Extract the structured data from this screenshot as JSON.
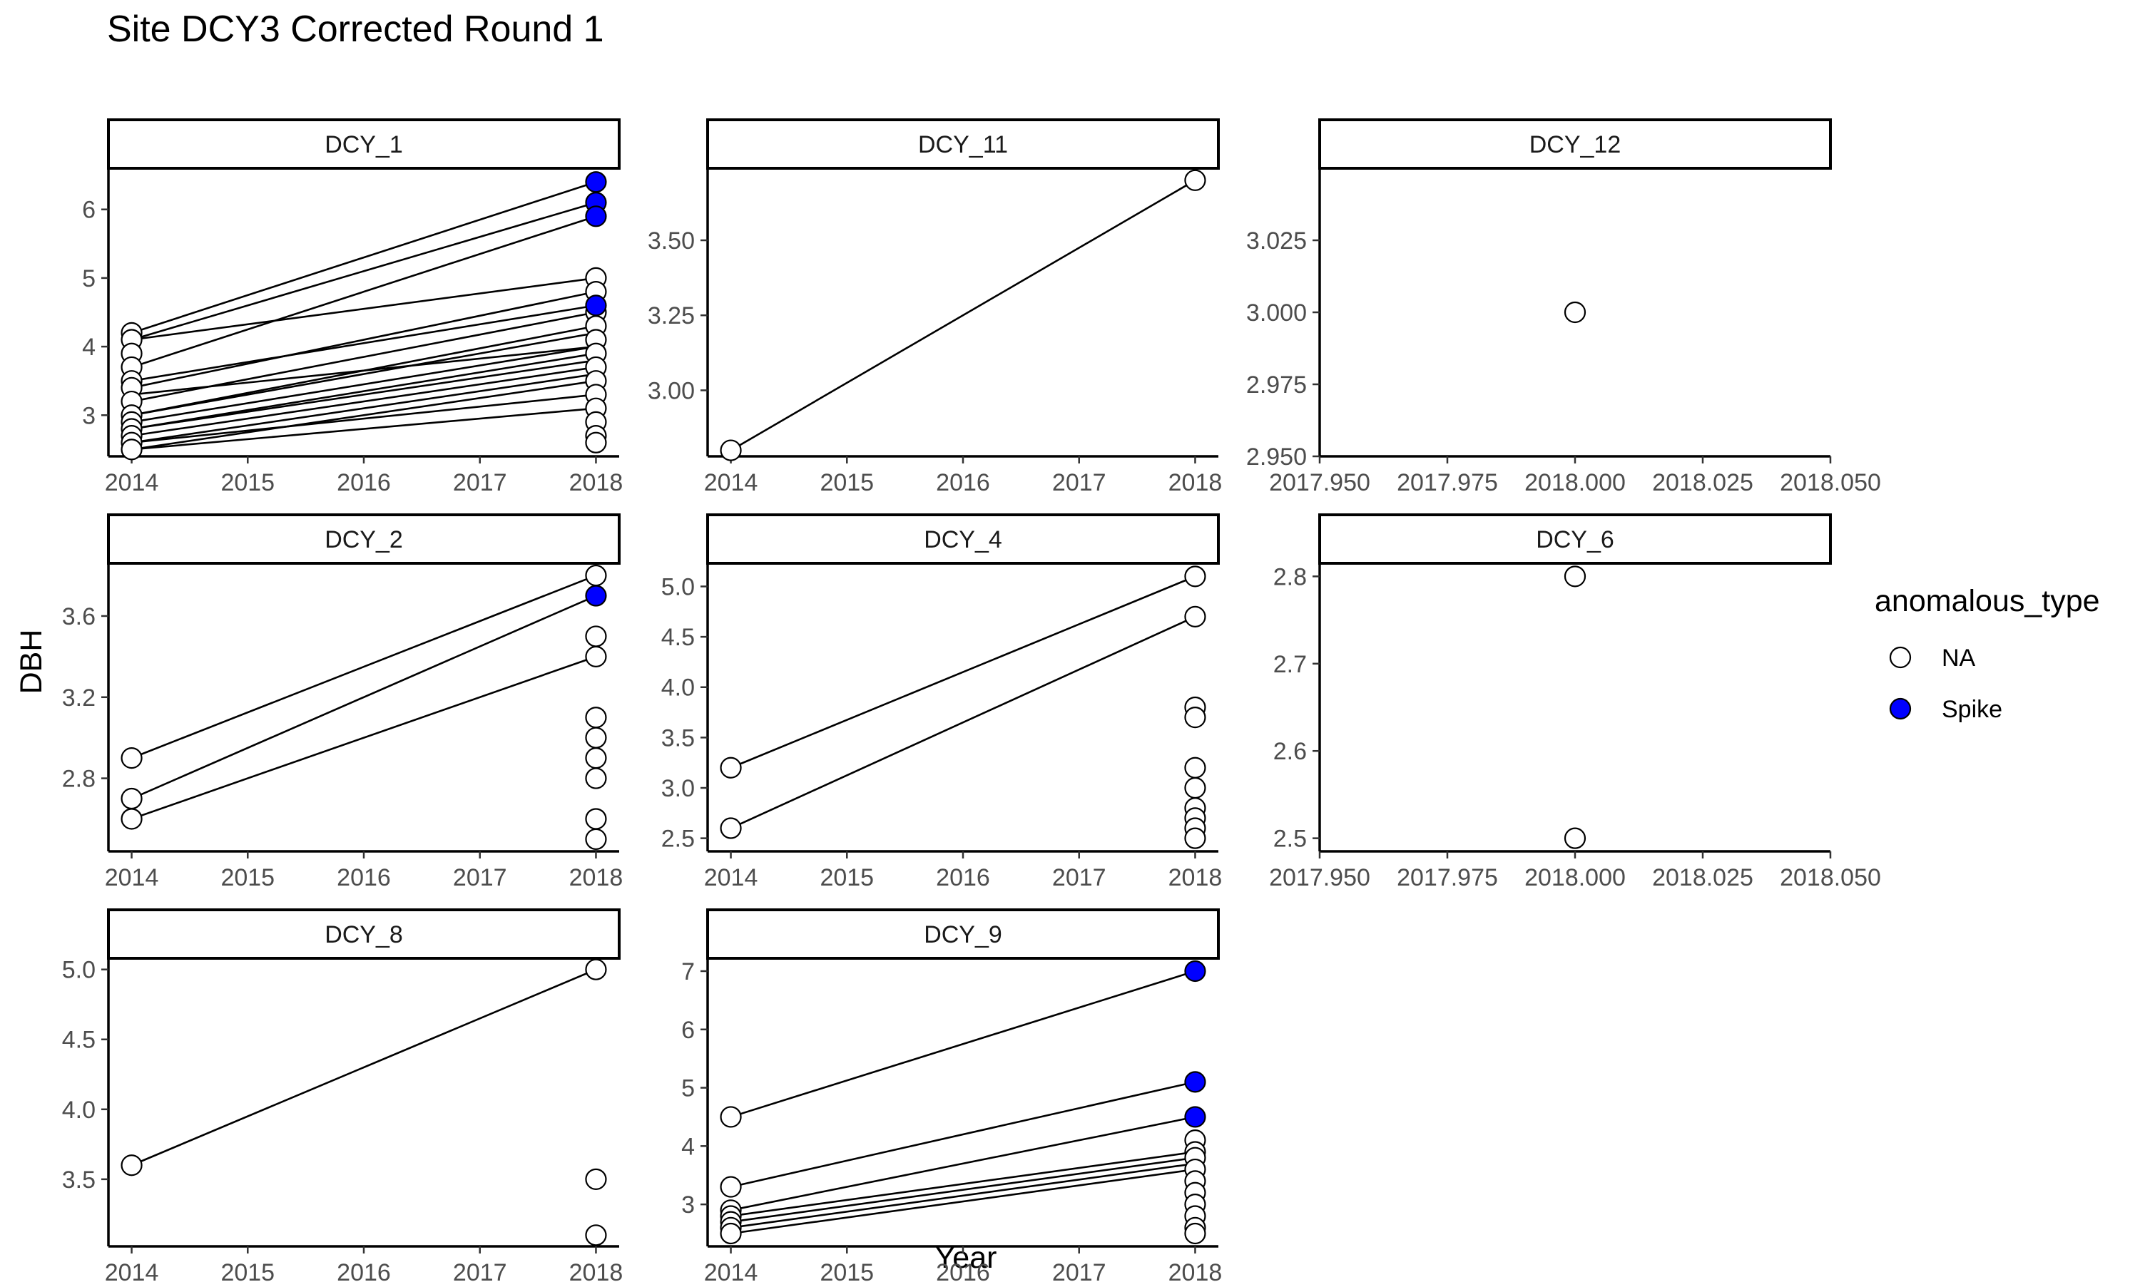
{
  "title": "Site DCY3 Corrected Round 1",
  "xlabel": "Year",
  "ylabel": "DBH",
  "legend": {
    "title": "anomalous_type",
    "items": [
      {
        "label": "NA",
        "fill": "#ffffff"
      },
      {
        "label": "Spike",
        "fill": "#0000ff"
      }
    ]
  },
  "colors": {
    "na_fill": "#ffffff",
    "spike_fill": "#0000ff",
    "stroke": "#000000"
  },
  "chart_data": [
    {
      "type": "scatter",
      "panel": "DCY_1",
      "xlim": [
        2013.8,
        2018.2
      ],
      "ylim": [
        2.4,
        6.6
      ],
      "xticks": [
        "2014",
        "2015",
        "2016",
        "2017",
        "2018"
      ],
      "yticks": [
        "3",
        "4",
        "5",
        "6"
      ],
      "segments": [
        [
          4.2,
          6.4
        ],
        [
          4.1,
          6.1
        ],
        [
          3.7,
          5.9
        ],
        [
          4.1,
          5.0
        ],
        [
          3.4,
          4.8
        ],
        [
          3.5,
          4.6
        ],
        [
          3.2,
          4.5
        ],
        [
          3.0,
          4.3
        ],
        [
          3.0,
          4.2
        ],
        [
          2.9,
          4.0
        ],
        [
          2.8,
          3.9
        ],
        [
          3.3,
          4.0
        ],
        [
          2.8,
          3.8
        ],
        [
          2.7,
          3.7
        ],
        [
          2.6,
          3.6
        ],
        [
          2.5,
          3.5
        ],
        [
          2.6,
          3.3
        ],
        [
          2.5,
          3.1
        ]
      ],
      "points": [
        {
          "x": 2014,
          "y": 4.2,
          "type": "NA"
        },
        {
          "x": 2014,
          "y": 4.1,
          "type": "NA"
        },
        {
          "x": 2014,
          "y": 3.9,
          "type": "NA"
        },
        {
          "x": 2014,
          "y": 3.7,
          "type": "NA"
        },
        {
          "x": 2014,
          "y": 3.5,
          "type": "NA"
        },
        {
          "x": 2014,
          "y": 3.4,
          "type": "NA"
        },
        {
          "x": 2014,
          "y": 3.2,
          "type": "NA"
        },
        {
          "x": 2014,
          "y": 3.0,
          "type": "NA"
        },
        {
          "x": 2014,
          "y": 2.9,
          "type": "NA"
        },
        {
          "x": 2014,
          "y": 2.8,
          "type": "NA"
        },
        {
          "x": 2014,
          "y": 2.7,
          "type": "NA"
        },
        {
          "x": 2014,
          "y": 2.6,
          "type": "NA"
        },
        {
          "x": 2014,
          "y": 2.5,
          "type": "NA"
        },
        {
          "x": 2018,
          "y": 5.0,
          "type": "NA"
        },
        {
          "x": 2018,
          "y": 4.8,
          "type": "NA"
        },
        {
          "x": 2018,
          "y": 4.5,
          "type": "NA"
        },
        {
          "x": 2018,
          "y": 4.3,
          "type": "NA"
        },
        {
          "x": 2018,
          "y": 4.1,
          "type": "NA"
        },
        {
          "x": 2018,
          "y": 3.9,
          "type": "NA"
        },
        {
          "x": 2018,
          "y": 3.7,
          "type": "NA"
        },
        {
          "x": 2018,
          "y": 3.5,
          "type": "NA"
        },
        {
          "x": 2018,
          "y": 3.3,
          "type": "NA"
        },
        {
          "x": 2018,
          "y": 3.1,
          "type": "NA"
        },
        {
          "x": 2018,
          "y": 2.9,
          "type": "NA"
        },
        {
          "x": 2018,
          "y": 2.7,
          "type": "NA"
        },
        {
          "x": 2018,
          "y": 2.6,
          "type": "NA"
        },
        {
          "x": 2018,
          "y": 6.4,
          "type": "Spike"
        },
        {
          "x": 2018,
          "y": 6.1,
          "type": "Spike"
        },
        {
          "x": 2018,
          "y": 5.9,
          "type": "Spike"
        },
        {
          "x": 2018,
          "y": 4.6,
          "type": "Spike"
        }
      ]
    },
    {
      "type": "scatter",
      "panel": "DCY_11",
      "xlim": [
        2013.8,
        2018.2
      ],
      "ylim": [
        2.78,
        3.74
      ],
      "xticks": [
        "2014",
        "2015",
        "2016",
        "2017",
        "2018"
      ],
      "yticks": [
        "3.00",
        "3.25",
        "3.50"
      ],
      "segments": [
        [
          2.8,
          3.7
        ]
      ],
      "points": [
        {
          "x": 2014,
          "y": 2.8,
          "type": "NA"
        },
        {
          "x": 2018,
          "y": 3.7,
          "type": "NA"
        }
      ]
    },
    {
      "type": "scatter",
      "panel": "DCY_12",
      "xlim": [
        2017.95,
        2018.05
      ],
      "ylim": [
        2.95,
        3.05
      ],
      "xticks": [
        "2017.950",
        "2017.975",
        "2018.000",
        "2018.025",
        "2018.050"
      ],
      "yticks": [
        "2.950",
        "2.975",
        "3.000",
        "3.025"
      ],
      "segments": [],
      "points": [
        {
          "x": 2018,
          "y": 3.0,
          "type": "NA"
        }
      ]
    },
    {
      "type": "scatter",
      "panel": "DCY_2",
      "xlim": [
        2013.8,
        2018.2
      ],
      "ylim": [
        2.44,
        3.86
      ],
      "xticks": [
        "2014",
        "2015",
        "2016",
        "2017",
        "2018"
      ],
      "yticks": [
        "2.8",
        "3.2",
        "3.6"
      ],
      "segments": [
        [
          2.9,
          3.8
        ],
        [
          2.7,
          3.7
        ],
        [
          2.6,
          3.4
        ]
      ],
      "points": [
        {
          "x": 2014,
          "y": 2.9,
          "type": "NA"
        },
        {
          "x": 2014,
          "y": 2.7,
          "type": "NA"
        },
        {
          "x": 2014,
          "y": 2.6,
          "type": "NA"
        },
        {
          "x": 2018,
          "y": 3.8,
          "type": "NA"
        },
        {
          "x": 2018,
          "y": 3.5,
          "type": "NA"
        },
        {
          "x": 2018,
          "y": 3.4,
          "type": "NA"
        },
        {
          "x": 2018,
          "y": 3.1,
          "type": "NA"
        },
        {
          "x": 2018,
          "y": 3.0,
          "type": "NA"
        },
        {
          "x": 2018,
          "y": 2.9,
          "type": "NA"
        },
        {
          "x": 2018,
          "y": 2.8,
          "type": "NA"
        },
        {
          "x": 2018,
          "y": 2.6,
          "type": "NA"
        },
        {
          "x": 2018,
          "y": 2.5,
          "type": "NA"
        },
        {
          "x": 2018,
          "y": 3.7,
          "type": "Spike"
        }
      ]
    },
    {
      "type": "scatter",
      "panel": "DCY_4",
      "xlim": [
        2013.8,
        2018.2
      ],
      "ylim": [
        2.37,
        5.23
      ],
      "xticks": [
        "2014",
        "2015",
        "2016",
        "2017",
        "2018"
      ],
      "yticks": [
        "2.5",
        "3.0",
        "3.5",
        "4.0",
        "4.5",
        "5.0"
      ],
      "segments": [
        [
          3.2,
          5.1
        ],
        [
          2.6,
          4.7
        ]
      ],
      "points": [
        {
          "x": 2014,
          "y": 3.2,
          "type": "NA"
        },
        {
          "x": 2014,
          "y": 2.6,
          "type": "NA"
        },
        {
          "x": 2018,
          "y": 5.1,
          "type": "NA"
        },
        {
          "x": 2018,
          "y": 4.7,
          "type": "NA"
        },
        {
          "x": 2018,
          "y": 3.8,
          "type": "NA"
        },
        {
          "x": 2018,
          "y": 3.7,
          "type": "NA"
        },
        {
          "x": 2018,
          "y": 3.2,
          "type": "NA"
        },
        {
          "x": 2018,
          "y": 3.0,
          "type": "NA"
        },
        {
          "x": 2018,
          "y": 2.8,
          "type": "NA"
        },
        {
          "x": 2018,
          "y": 2.7,
          "type": "NA"
        },
        {
          "x": 2018,
          "y": 2.6,
          "type": "NA"
        },
        {
          "x": 2018,
          "y": 2.5,
          "type": "NA"
        }
      ]
    },
    {
      "type": "scatter",
      "panel": "DCY_6",
      "xlim": [
        2017.95,
        2018.05
      ],
      "ylim": [
        2.485,
        2.815
      ],
      "xticks": [
        "2017.950",
        "2017.975",
        "2018.000",
        "2018.025",
        "2018.050"
      ],
      "yticks": [
        "2.5",
        "2.6",
        "2.7",
        "2.8"
      ],
      "segments": [],
      "points": [
        {
          "x": 2018,
          "y": 2.8,
          "type": "NA"
        },
        {
          "x": 2018,
          "y": 2.5,
          "type": "NA"
        }
      ]
    },
    {
      "type": "scatter",
      "panel": "DCY_8",
      "xlim": [
        2013.8,
        2018.2
      ],
      "ylim": [
        3.02,
        5.08
      ],
      "xticks": [
        "2014",
        "2015",
        "2016",
        "2017",
        "2018"
      ],
      "yticks": [
        "3.5",
        "4.0",
        "4.5",
        "5.0"
      ],
      "segments": [
        [
          3.6,
          5.0
        ]
      ],
      "points": [
        {
          "x": 2014,
          "y": 3.6,
          "type": "NA"
        },
        {
          "x": 2018,
          "y": 5.0,
          "type": "NA"
        },
        {
          "x": 2018,
          "y": 3.5,
          "type": "NA"
        },
        {
          "x": 2018,
          "y": 3.1,
          "type": "NA"
        }
      ]
    },
    {
      "type": "scatter",
      "panel": "DCY_9",
      "xlim": [
        2013.8,
        2018.2
      ],
      "ylim": [
        2.28,
        7.22
      ],
      "xticks": [
        "2014",
        "2015",
        "2016",
        "2017",
        "2018"
      ],
      "yticks": [
        "3",
        "4",
        "5",
        "6",
        "7"
      ],
      "segments": [
        [
          4.5,
          7.0
        ],
        [
          3.3,
          5.1
        ],
        [
          2.9,
          4.5
        ],
        [
          2.8,
          3.9
        ],
        [
          2.7,
          3.8
        ],
        [
          2.6,
          3.7
        ],
        [
          2.5,
          3.6
        ]
      ],
      "points": [
        {
          "x": 2014,
          "y": 4.5,
          "type": "NA"
        },
        {
          "x": 2014,
          "y": 3.3,
          "type": "NA"
        },
        {
          "x": 2014,
          "y": 2.9,
          "type": "NA"
        },
        {
          "x": 2014,
          "y": 2.8,
          "type": "NA"
        },
        {
          "x": 2014,
          "y": 2.7,
          "type": "NA"
        },
        {
          "x": 2014,
          "y": 2.6,
          "type": "NA"
        },
        {
          "x": 2014,
          "y": 2.5,
          "type": "NA"
        },
        {
          "x": 2018,
          "y": 4.1,
          "type": "NA"
        },
        {
          "x": 2018,
          "y": 3.9,
          "type": "NA"
        },
        {
          "x": 2018,
          "y": 3.8,
          "type": "NA"
        },
        {
          "x": 2018,
          "y": 3.6,
          "type": "NA"
        },
        {
          "x": 2018,
          "y": 3.4,
          "type": "NA"
        },
        {
          "x": 2018,
          "y": 3.2,
          "type": "NA"
        },
        {
          "x": 2018,
          "y": 3.0,
          "type": "NA"
        },
        {
          "x": 2018,
          "y": 2.8,
          "type": "NA"
        },
        {
          "x": 2018,
          "y": 2.6,
          "type": "NA"
        },
        {
          "x": 2018,
          "y": 2.5,
          "type": "NA"
        },
        {
          "x": 2018,
          "y": 7.0,
          "type": "Spike"
        },
        {
          "x": 2018,
          "y": 5.1,
          "type": "Spike"
        },
        {
          "x": 2018,
          "y": 4.5,
          "type": "Spike"
        }
      ]
    }
  ]
}
